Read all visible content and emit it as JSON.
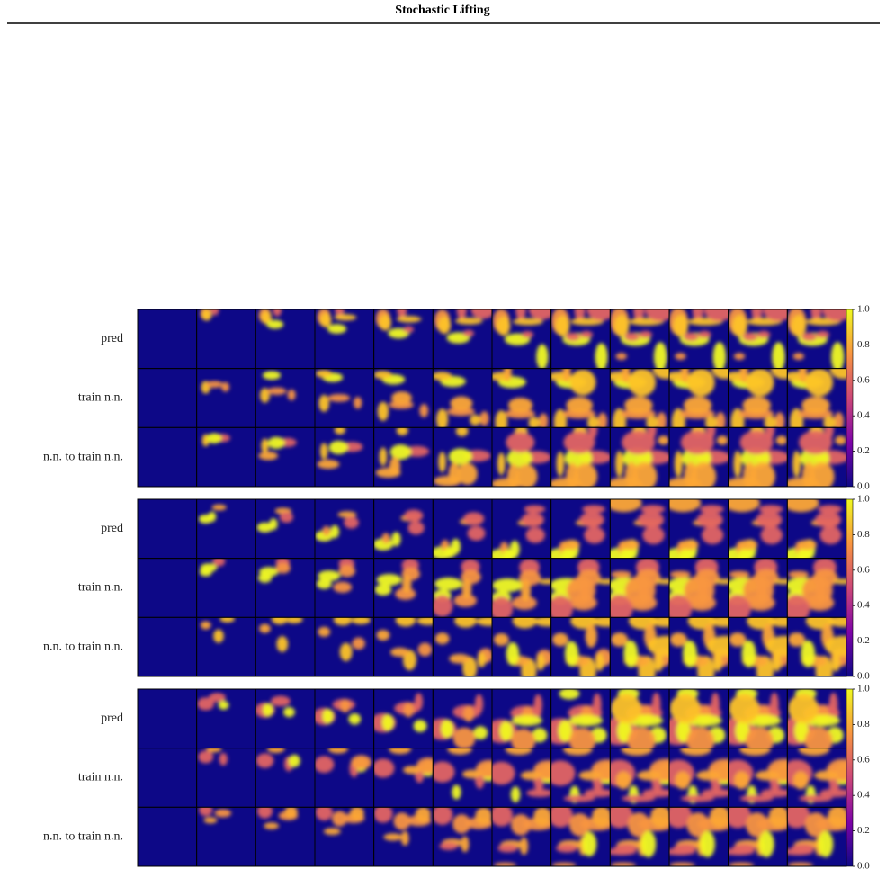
{
  "header": {
    "title": "Stochastic Lifting"
  },
  "figure": {
    "panels": [
      {
        "rows": [
          "pred",
          "train n.n.",
          "n.n. to train n.n."
        ],
        "colorbar": {
          "ticks": [
            {
              "value": 0,
              "label": "0.0"
            },
            {
              "value": 0.2,
              "label": "0.2"
            },
            {
              "value": 0.4,
              "label": "0.4"
            },
            {
              "value": 0.6,
              "label": "0.6"
            },
            {
              "value": 0.8,
              "label": "0.8"
            },
            {
              "value": 1,
              "label": "1.0"
            }
          ]
        }
      },
      {
        "rows": [
          "pred",
          "train n.n.",
          "n.n. to train n.n."
        ],
        "colorbar": {
          "ticks": [
            {
              "value": 0,
              "label": "0.0"
            },
            {
              "value": 0.2,
              "label": "0.2"
            },
            {
              "value": 0.4,
              "label": "0.4"
            },
            {
              "value": 0.6,
              "label": "0.6"
            },
            {
              "value": 0.8,
              "label": "0.8"
            },
            {
              "value": 1,
              "label": "1.0"
            }
          ]
        }
      },
      {
        "rows": [
          "pred",
          "train n.n.",
          "n.n. to train n.n."
        ],
        "colorbar": {
          "ticks": [
            {
              "value": 0,
              "label": "0.0"
            },
            {
              "value": 0.2,
              "label": "0.2"
            },
            {
              "value": 0.4,
              "label": "0.4"
            },
            {
              "value": 0.6,
              "label": "0.6"
            },
            {
              "value": 0.8,
              "label": "0.8"
            },
            {
              "value": 1,
              "label": "1.0"
            }
          ]
        }
      }
    ]
  }
}
